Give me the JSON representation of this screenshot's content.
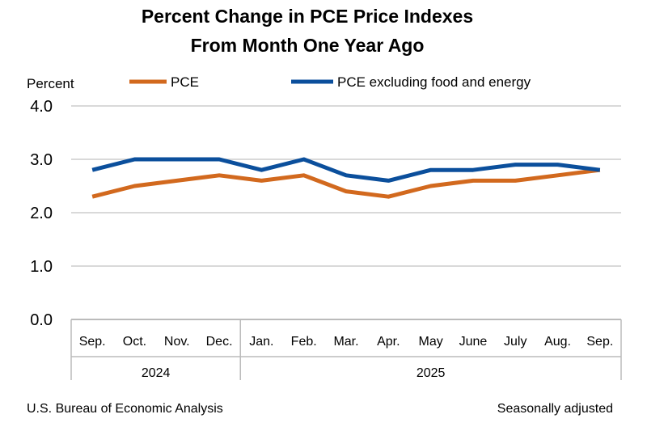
{
  "chart_data": {
    "type": "line",
    "title": [
      "Percent Change in PCE Price Indexes",
      "From Month One Year Ago"
    ],
    "ylabel": "Percent",
    "ylim": [
      0,
      4
    ],
    "yticks": [
      "0.0",
      "1.0",
      "2.0",
      "3.0",
      "4.0"
    ],
    "grid": true,
    "legend": "top",
    "categories": [
      "Sep.",
      "Oct.",
      "Nov.",
      "Dec.",
      "Jan.",
      "Feb.",
      "Mar.",
      "Apr.",
      "May",
      "June",
      "July",
      "Aug.",
      "Sep."
    ],
    "year_groups": [
      {
        "label": "2024",
        "count": 4
      },
      {
        "label": "2025",
        "count": 9
      }
    ],
    "series": [
      {
        "name": "PCE",
        "color": "#d2691e",
        "values": [
          2.3,
          2.5,
          2.6,
          2.7,
          2.6,
          2.7,
          2.4,
          2.3,
          2.5,
          2.6,
          2.6,
          2.7,
          2.8
        ]
      },
      {
        "name": "PCE excluding food and energy",
        "color": "#0b4f9c",
        "values": [
          2.8,
          3.0,
          3.0,
          3.0,
          2.8,
          3.0,
          2.7,
          2.6,
          2.8,
          2.8,
          2.9,
          2.9,
          2.8
        ]
      }
    ],
    "source": "U.S. Bureau of Economic Analysis",
    "note": "Seasonally adjusted"
  }
}
